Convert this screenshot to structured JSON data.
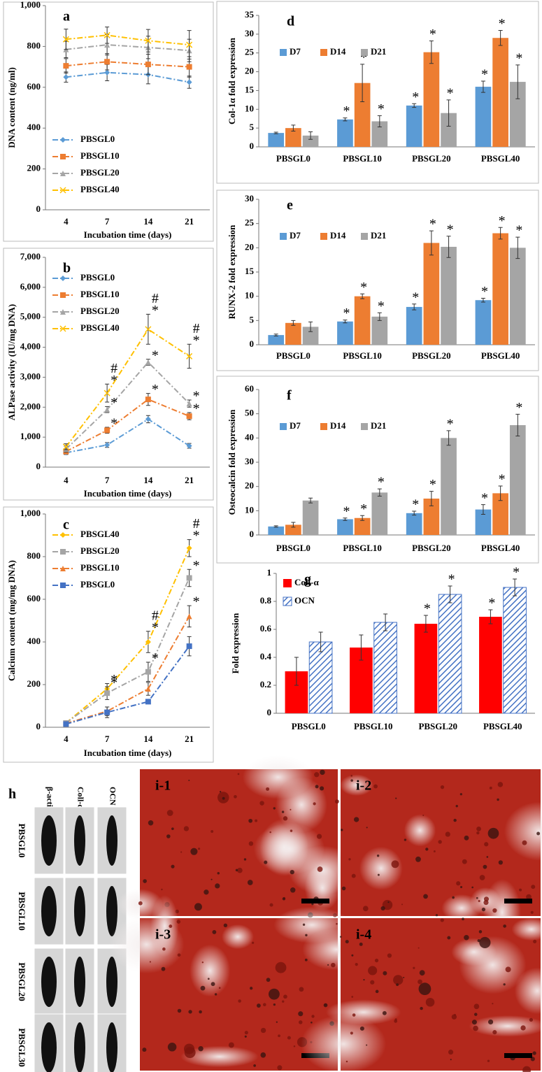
{
  "chart_data": [
    {
      "type": "line",
      "label": "a",
      "ylabel": "DNA content (ng/ml)",
      "xlabel": "Incubation  time (days)",
      "categories": [
        "4",
        "7",
        "14",
        "21"
      ],
      "ylim": [
        0,
        1000
      ],
      "yticks": [
        0,
        200,
        400,
        600,
        800,
        {
          "value": 1000,
          "label": "1,000"
        }
      ],
      "legend": "lower left",
      "series": [
        {
          "name": "PBSGL0",
          "color": "#5b9bd5",
          "marker": "diamond",
          "values": [
            650,
            672,
            662,
            625
          ],
          "errors": [
            25,
            40,
            45,
            30
          ]
        },
        {
          "name": "PBSGL10",
          "color": "#ed7d31",
          "marker": "square",
          "values": [
            705,
            725,
            712,
            700
          ],
          "errors": [
            35,
            40,
            50,
            50
          ]
        },
        {
          "name": "PBSGL20",
          "color": "#a5a5a5",
          "marker": "triangle",
          "values": [
            785,
            808,
            795,
            780
          ],
          "errors": [
            40,
            50,
            55,
            55
          ]
        },
        {
          "name": "PBSGL40",
          "color": "#ffc000",
          "marker": "x",
          "values": [
            835,
            855,
            828,
            808
          ],
          "errors": [
            50,
            40,
            55,
            70
          ]
        }
      ]
    },
    {
      "type": "line",
      "label": "b",
      "ylabel": "ALPase activity (IU/mg DNA)",
      "xlabel": "Incubation  time (days)",
      "categories": [
        "4",
        "7",
        "14",
        "21"
      ],
      "ylim": [
        0,
        7000
      ],
      "yticks": [
        0,
        {
          "value": 1000,
          "label": "1,000"
        },
        {
          "value": 2000,
          "label": "2,000"
        },
        {
          "value": 3000,
          "label": "3,000"
        },
        {
          "value": 4000,
          "label": "4,000"
        },
        {
          "value": 5000,
          "label": "5,000"
        },
        {
          "value": 6000,
          "label": "6,000"
        },
        {
          "value": 7000,
          "label": "7,000"
        }
      ],
      "legend": "upper left",
      "series": [
        {
          "name": "PBSGL0",
          "color": "#5b9bd5",
          "marker": "diamond",
          "values": [
            480,
            740,
            1600,
            710
          ],
          "errors": [
            60,
            80,
            120,
            80
          ]
        },
        {
          "name": "PBSGL10",
          "color": "#ed7d31",
          "marker": "square",
          "values": [
            520,
            1230,
            2260,
            1700
          ],
          "errors": [
            80,
            100,
            200,
            120
          ],
          "annotations": [
            null,
            [
              "*"
            ],
            [
              "*"
            ],
            [
              "*"
            ]
          ]
        },
        {
          "name": "PBSGL20",
          "color": "#a5a5a5",
          "marker": "triangle",
          "values": [
            600,
            1920,
            3500,
            2120
          ],
          "errors": [
            100,
            100,
            100,
            120
          ],
          "annotations": [
            null,
            [
              "*"
            ],
            [
              "*"
            ],
            [
              "*"
            ]
          ]
        },
        {
          "name": "PBSGL40",
          "color": "#ffc000",
          "marker": "x",
          "values": [
            680,
            2470,
            4600,
            3700
          ],
          "errors": [
            100,
            300,
            500,
            400
          ],
          "annotations": [
            null,
            [
              "*",
              "#"
            ],
            [
              "*",
              "#"
            ],
            [
              "*",
              "#"
            ]
          ]
        }
      ]
    },
    {
      "type": "line",
      "label": "c",
      "ylabel": "Calcium  content (mg/mg DNA)",
      "xlabel": "Incubation  time (days)",
      "categories": [
        "4",
        "7",
        "14",
        "21"
      ],
      "ylim": [
        0,
        1000
      ],
      "yticks": [
        0,
        200,
        400,
        600,
        800,
        {
          "value": 1000,
          "label": "1,000"
        }
      ],
      "legend": "upper left",
      "series": [
        {
          "name": "PBSGL40",
          "color": "#ffc000",
          "marker": "diamond",
          "values": [
            20,
            180,
            400,
            840
          ],
          "errors": [
            5,
            25,
            50,
            40
          ],
          "annotations": [
            null,
            [
              "*"
            ],
            [
              "*",
              "#"
            ],
            [
              "*",
              "#"
            ]
          ]
        },
        {
          "name": "PBSGL20",
          "color": "#a5a5a5",
          "marker": "square",
          "values": [
            20,
            160,
            260,
            700
          ],
          "errors": [
            5,
            30,
            45,
            40
          ],
          "annotations": [
            null,
            [
              "*"
            ],
            [
              "*"
            ],
            [
              "*"
            ]
          ]
        },
        {
          "name": "PBSGL10",
          "color": "#ed7d31",
          "marker": "triangle",
          "values": [
            18,
            75,
            180,
            520
          ],
          "errors": [
            5,
            20,
            30,
            50
          ],
          "annotations": [
            null,
            null,
            null,
            [
              "*"
            ]
          ]
        },
        {
          "name": "PBSGL0",
          "color": "#4472c4",
          "marker": "square",
          "values": [
            15,
            70,
            120,
            380
          ],
          "errors": [
            5,
            25,
            10,
            45
          ]
        }
      ]
    },
    {
      "type": "bar",
      "label": "d",
      "ylabel": "Col-1α fold expression",
      "categories": [
        "PBSGL0",
        "PBSGL10",
        "PBSGL20",
        "PBSGL40"
      ],
      "ylim": [
        0,
        35
      ],
      "yticks": [
        0,
        5,
        10,
        15,
        20,
        25,
        30,
        35
      ],
      "legend": "upper left",
      "series": [
        {
          "name": "D7",
          "color": "#5b9bd5",
          "values": [
            3.7,
            7.3,
            11,
            16
          ],
          "errors": [
            0.2,
            0.4,
            0.5,
            1.5
          ],
          "annotations": [
            null,
            [
              "*"
            ],
            [
              "*"
            ],
            [
              "*"
            ]
          ]
        },
        {
          "name": "D14",
          "color": "#ed7d31",
          "values": [
            5,
            17,
            25.2,
            29
          ],
          "errors": [
            0.8,
            5,
            3,
            2
          ],
          "annotations": [
            null,
            [
              "*"
            ],
            [
              "*"
            ],
            [
              "*"
            ]
          ]
        },
        {
          "name": "D21",
          "color": "#a5a5a5",
          "values": [
            3,
            6.8,
            9,
            17.3
          ],
          "errors": [
            1,
            1.5,
            3.5,
            4.5
          ],
          "annotations": [
            null,
            [
              "*"
            ],
            [
              "*"
            ],
            [
              "*"
            ]
          ]
        }
      ]
    },
    {
      "type": "bar",
      "label": "e",
      "ylabel": "RUNX-2 fold expression",
      "categories": [
        "PBSGL0",
        "PBSGL10",
        "PBSGL20",
        "PBSGL40"
      ],
      "ylim": [
        0,
        30
      ],
      "yticks": [
        0,
        5,
        10,
        15,
        20,
        25,
        30
      ],
      "legend": "upper left",
      "series": [
        {
          "name": "D7",
          "color": "#5b9bd5",
          "values": [
            2,
            4.8,
            7.8,
            9.2
          ],
          "errors": [
            0.2,
            0.3,
            0.6,
            0.4
          ],
          "annotations": [
            null,
            [
              "*"
            ],
            [
              "*"
            ],
            [
              "*"
            ]
          ]
        },
        {
          "name": "D14",
          "color": "#ed7d31",
          "values": [
            4.5,
            10,
            21,
            23
          ],
          "errors": [
            0.5,
            0.5,
            2.5,
            1.2
          ],
          "annotations": [
            null,
            [
              "*"
            ],
            [
              "*"
            ],
            [
              "*"
            ]
          ]
        },
        {
          "name": "D21",
          "color": "#a5a5a5",
          "values": [
            3.7,
            5.8,
            20.2,
            20
          ],
          "errors": [
            1,
            0.8,
            2.2,
            2.2
          ],
          "annotations": [
            null,
            [
              "*"
            ],
            [
              "*"
            ],
            [
              "*"
            ]
          ]
        }
      ]
    },
    {
      "type": "bar",
      "label": "f",
      "ylabel": "Osteocalcin fold expression",
      "categories": [
        "PBSGL0",
        "PBSGL10",
        "PBSGL20",
        "PBSGL40"
      ],
      "ylim": [
        0,
        60
      ],
      "yticks": [
        0,
        10,
        20,
        30,
        40,
        50,
        60
      ],
      "legend": "upper left",
      "series": [
        {
          "name": "D7",
          "color": "#5b9bd5",
          "values": [
            3.5,
            6.5,
            9,
            10.5
          ],
          "errors": [
            0.3,
            0.5,
            0.8,
            2
          ],
          "annotations": [
            null,
            [
              "*"
            ],
            [
              "*"
            ],
            [
              "*"
            ]
          ]
        },
        {
          "name": "D14",
          "color": "#ed7d31",
          "values": [
            4.2,
            7,
            15,
            17.2
          ],
          "errors": [
            1,
            1,
            3,
            3
          ],
          "annotations": [
            null,
            [
              "*"
            ],
            [
              "*"
            ],
            [
              "*"
            ]
          ]
        },
        {
          "name": "D21",
          "color": "#a5a5a5",
          "values": [
            14.2,
            17.5,
            40,
            45.3
          ],
          "errors": [
            1,
            1.5,
            3,
            4.5
          ],
          "annotations": [
            null,
            [
              "*"
            ],
            [
              "*"
            ],
            [
              "*"
            ]
          ]
        }
      ]
    },
    {
      "type": "bar",
      "label": "g",
      "ylabel": "Fold expression",
      "categories": [
        "PBSGL0",
        "PBSGL10",
        "PBSGL20",
        "PBSGL40"
      ],
      "ylim": [
        0,
        1
      ],
      "yticks": [
        0,
        0.2,
        0.4,
        0.6,
        0.8,
        1
      ],
      "legend": "upper left",
      "series": [
        {
          "name": "Coll-α",
          "color": "#ff0000",
          "values": [
            0.3,
            0.47,
            0.64,
            0.69
          ],
          "errors": [
            0.1,
            0.09,
            0.06,
            0.05
          ],
          "annotations": [
            null,
            null,
            [
              "*"
            ],
            [
              "*"
            ]
          ]
        },
        {
          "name": "OCN",
          "color": "#4472c4",
          "pattern": "hatch",
          "values": [
            0.51,
            0.65,
            0.85,
            0.9
          ],
          "errors": [
            0.07,
            0.06,
            0.06,
            0.06
          ],
          "annotations": [
            null,
            null,
            [
              "*"
            ],
            [
              "*"
            ]
          ]
        }
      ]
    }
  ],
  "blot": {
    "label": "h",
    "columns": [
      "β-actin",
      "Coll-α",
      "OCN"
    ],
    "rows": [
      "PBSGL0",
      "PBSGL10",
      "PBSGL20",
      "PBSGL30"
    ]
  },
  "micrographs": {
    "labels": [
      "i-1",
      "i-2",
      "i-3",
      "i-4"
    ]
  }
}
